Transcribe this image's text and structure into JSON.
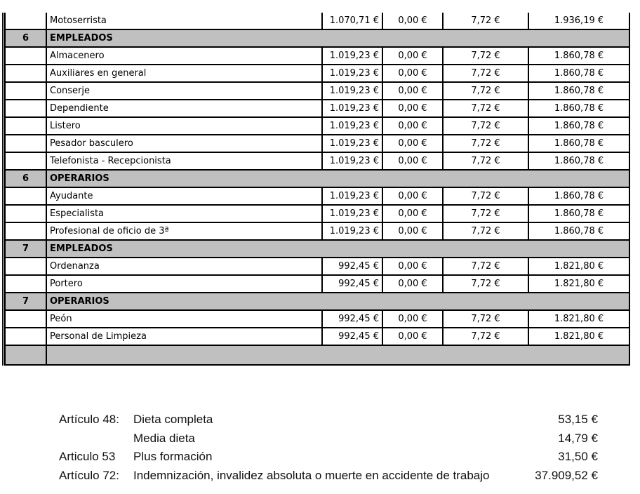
{
  "table": {
    "rows": [
      {
        "type": "item",
        "name": "Motoserrista",
        "c1": "1.070,71 €",
        "c2": "0,00 €",
        "c3": "7,72 €",
        "c4": "1.936,19 €"
      },
      {
        "type": "section",
        "level": "6",
        "name": "EMPLEADOS"
      },
      {
        "type": "item",
        "name": "Almacenero",
        "c1": "1.019,23 €",
        "c2": "0,00 €",
        "c3": "7,72 €",
        "c4": "1.860,78 €"
      },
      {
        "type": "item",
        "name": "Auxiliares en general",
        "c1": "1.019,23 €",
        "c2": "0,00 €",
        "c3": "7,72 €",
        "c4": "1.860,78 €"
      },
      {
        "type": "item",
        "name": "Conserje",
        "c1": "1.019,23 €",
        "c2": "0,00 €",
        "c3": "7,72 €",
        "c4": "1.860,78 €"
      },
      {
        "type": "item",
        "name": "Dependiente",
        "c1": "1.019,23 €",
        "c2": "0,00 €",
        "c3": "7,72 €",
        "c4": "1.860,78 €"
      },
      {
        "type": "item",
        "name": "Listero",
        "c1": "1.019,23 €",
        "c2": "0,00 €",
        "c3": "7,72 €",
        "c4": "1.860,78 €"
      },
      {
        "type": "item",
        "name": "Pesador basculero",
        "c1": "1.019,23 €",
        "c2": "0,00 €",
        "c3": "7,72 €",
        "c4": "1.860,78 €"
      },
      {
        "type": "item",
        "name": "Telefonista - Recepcionista",
        "c1": "1.019,23 €",
        "c2": "0,00 €",
        "c3": "7,72 €",
        "c4": "1.860,78 €"
      },
      {
        "type": "section",
        "level": "6",
        "name": "OPERARIOS"
      },
      {
        "type": "item",
        "name": "Ayudante",
        "c1": "1.019,23 €",
        "c2": "0,00 €",
        "c3": "7,72 €",
        "c4": "1.860,78 €"
      },
      {
        "type": "item",
        "name": "Especialista",
        "c1": "1.019,23 €",
        "c2": "0,00 €",
        "c3": "7,72 €",
        "c4": "1.860,78 €"
      },
      {
        "type": "item",
        "name": "Profesional de oficio de 3ª",
        "c1": "1.019,23 €",
        "c2": "0,00 €",
        "c3": "7,72 €",
        "c4": "1.860,78 €"
      },
      {
        "type": "section",
        "level": "7",
        "name": "EMPLEADOS"
      },
      {
        "type": "item",
        "name": "Ordenanza",
        "c1": "992,45 €",
        "c2": "0,00 €",
        "c3": "7,72 €",
        "c4": "1.821,80 €"
      },
      {
        "type": "item",
        "name": "Portero",
        "c1": "992,45 €",
        "c2": "0,00 €",
        "c3": "7,72 €",
        "c4": "1.821,80 €"
      },
      {
        "type": "section",
        "level": "7",
        "name": "OPERARIOS"
      },
      {
        "type": "item",
        "name": "Peón",
        "c1": "992,45 €",
        "c2": "0,00 €",
        "c3": "7,72 €",
        "c4": "1.821,80 €"
      },
      {
        "type": "item",
        "name": "Personal de Limpieza",
        "c1": "992,45 €",
        "c2": "0,00 €",
        "c3": "7,72 €",
        "c4": "1.821,80 €"
      }
    ]
  },
  "footer": [
    {
      "label": "Artículo 48:",
      "text": "Dieta completa",
      "value": "53,15 €"
    },
    {
      "label": "",
      "text": "Media dieta",
      "value": "14,79 €"
    },
    {
      "label": "Articulo 53",
      "text": "Plus formación",
      "value": "31,50 €"
    },
    {
      "label": "Artículo 72:",
      "text": "Indemnización, invalidez absoluta o muerte en accidente de trabajo",
      "value": "37.909,52 €"
    }
  ]
}
